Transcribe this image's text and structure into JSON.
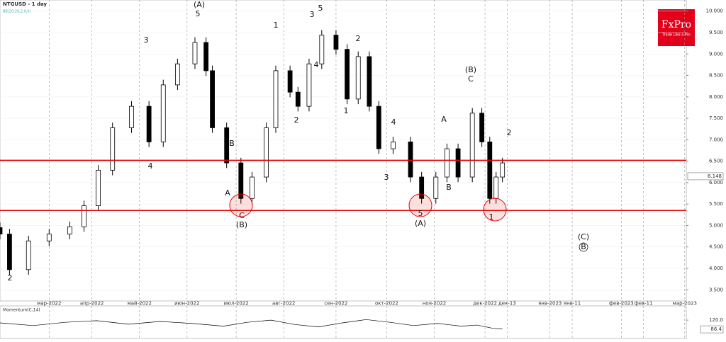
{
  "chart_data": {
    "type": "candlestick",
    "title": "NTGUSD - 1 day",
    "indicator": "BB(20,20,2,0,0)",
    "logo": {
      "brand": "FxPro",
      "tagline": "Trade Like a Pro"
    },
    "x": [
      -31,
      -25,
      -13,
      0,
      13,
      22,
      31,
      40,
      52,
      63,
      72,
      81,
      92,
      99,
      103,
      112,
      121,
      128,
      137,
      143,
      152,
      157,
      164,
      172,
      181,
      188,
      195,
      202,
      208,
      217,
      228,
      235,
      244,
      251,
      258,
      267,
      273,
      278,
      282,
      286
    ],
    "open": [
      4.95,
      4.8,
      3.97,
      4.64,
      4.8,
      4.97,
      5.46,
      6.29,
      7.28,
      7.78,
      6.95,
      8.28,
      8.77,
      9.27,
      8.61,
      7.28,
      6.46,
      5.63,
      6.13,
      7.28,
      8.61,
      8.11,
      7.78,
      8.77,
      9.44,
      9.11,
      7.95,
      8.94,
      7.78,
      6.79,
      6.95,
      6.13,
      5.63,
      6.13,
      6.79,
      6.13,
      7.62,
      6.95,
      5.63,
      6.13
    ],
    "high": [
      5.07,
      4.92,
      4.76,
      4.92,
      5.09,
      5.58,
      6.41,
      7.4,
      7.9,
      7.9,
      8.4,
      8.89,
      9.39,
      9.39,
      8.73,
      7.4,
      6.58,
      6.25,
      7.4,
      8.73,
      8.73,
      8.23,
      8.89,
      9.56,
      9.56,
      9.23,
      9.06,
      9.06,
      7.9,
      7.07,
      7.07,
      6.25,
      6.25,
      6.91,
      6.91,
      7.74,
      7.74,
      7.07,
      6.25,
      6.58
    ],
    "low": [
      4.68,
      3.85,
      3.85,
      4.52,
      4.68,
      4.85,
      5.34,
      6.17,
      7.16,
      6.83,
      6.83,
      8.16,
      8.65,
      8.49,
      7.16,
      6.34,
      5.51,
      5.51,
      6.01,
      7.16,
      7.99,
      7.66,
      7.66,
      8.65,
      8.99,
      7.83,
      7.83,
      7.66,
      6.67,
      6.67,
      6.01,
      5.51,
      5.51,
      6.01,
      6.01,
      6.01,
      6.83,
      5.51,
      5.51,
      6.01
    ],
    "close": [
      4.8,
      3.97,
      4.64,
      4.8,
      4.97,
      5.46,
      6.29,
      7.28,
      7.78,
      6.95,
      8.28,
      8.77,
      9.27,
      8.61,
      7.28,
      6.46,
      5.63,
      6.13,
      7.28,
      8.61,
      8.11,
      7.78,
      8.77,
      9.44,
      9.11,
      7.95,
      8.94,
      7.78,
      6.79,
      6.95,
      6.13,
      5.63,
      6.13,
      6.79,
      6.13,
      7.62,
      6.95,
      5.63,
      6.13,
      6.46
    ],
    "current_price": 6.148,
    "levels": [
      6.52,
      5.35
    ],
    "level_color": "#e60000",
    "xlim": [
      -31,
      402
    ],
    "ylim": [
      3.24,
      10.26
    ],
    "xticks": [
      {
        "value": 0,
        "label": "мар-2022"
      },
      {
        "value": 27,
        "label": "апр-2022"
      },
      {
        "value": 57,
        "label": "май-2022"
      },
      {
        "value": 87,
        "label": "июн-2022"
      },
      {
        "value": 118,
        "label": "июл-2022"
      },
      {
        "value": 148,
        "label": "авг-2022"
      },
      {
        "value": 181,
        "label": "сен-2022"
      },
      {
        "value": 213,
        "label": "окт-2022"
      },
      {
        "value": 243,
        "label": "ноя-2022"
      },
      {
        "value": 275,
        "label": "дек-2022"
      },
      {
        "value": 289,
        "label": "дек-13"
      },
      {
        "value": 316,
        "label": "янв-2023"
      },
      {
        "value": 330,
        "label": "янв-11"
      },
      {
        "value": 361,
        "label": "фев-2023"
      },
      {
        "value": 375,
        "label": "фев-11"
      },
      {
        "value": 401,
        "label": "мар-2023"
      }
    ],
    "yticks": [
      {
        "value": 3.5,
        "label": "3.500"
      },
      {
        "value": 4,
        "label": "4.000"
      },
      {
        "value": 4.5,
        "label": "4.500"
      },
      {
        "value": 5,
        "label": "5.000"
      },
      {
        "value": 5.5,
        "label": "5.500"
      },
      {
        "value": 6,
        "label": "6.000"
      },
      {
        "value": 6.5,
        "label": "6.500"
      },
      {
        "value": 7,
        "label": "7.000"
      },
      {
        "value": 7.5,
        "label": "7.500"
      },
      {
        "value": 8,
        "label": "8.000"
      },
      {
        "value": 8.5,
        "label": "8.500"
      },
      {
        "value": 9,
        "label": "9.000"
      },
      {
        "value": 9.5,
        "label": "9.500"
      },
      {
        "value": 10,
        "label": "10.000"
      }
    ],
    "grid": true,
    "wave_labels": [
      "2",
      "(A)",
      "5",
      "3",
      "4",
      "B",
      "A",
      "C",
      "(B)",
      "1",
      "2",
      "3",
      "4",
      "5",
      "2",
      "1",
      "4",
      "3",
      "5",
      "(A)",
      "A",
      "B",
      "C",
      "(B)",
      "1",
      "2",
      "(C)",
      "B"
    ],
    "momentum": {
      "title": "Momentum(C,14)",
      "x": [
        -31,
        -10,
        10,
        30,
        50,
        70,
        90,
        110,
        125,
        140,
        155,
        170,
        185,
        200,
        215,
        230,
        245,
        260,
        270,
        280,
        286
      ],
      "values": [
        110,
        100,
        112,
        118,
        105,
        115,
        108,
        98,
        112,
        120,
        104,
        95,
        110,
        122,
        112,
        100,
        108,
        98,
        102,
        90,
        88
      ],
      "current": 86.4,
      "ylim": [
        53,
        172
      ],
      "yticks": [
        {
          "value": 120,
          "label": "120.0"
        }
      ]
    }
  }
}
